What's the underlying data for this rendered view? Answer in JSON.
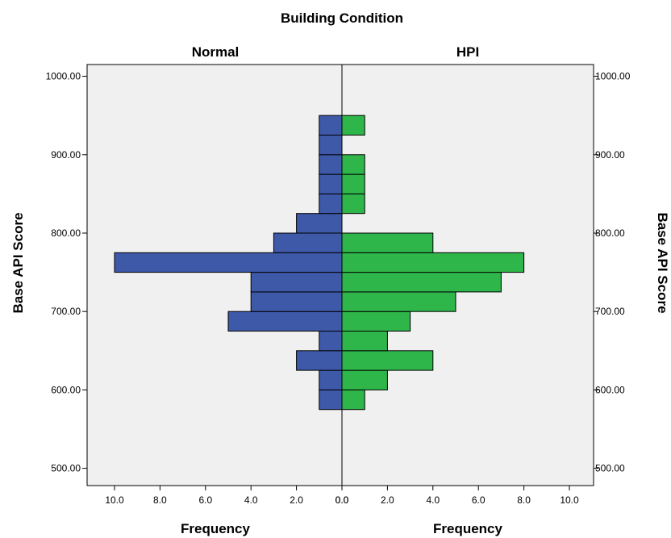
{
  "chart_data": {
    "type": "bar",
    "orientation": "population-pyramid",
    "title": "Building Condition",
    "panels": [
      {
        "name": "Normal",
        "side": "left",
        "color": "#3f59a9",
        "bins": [
          {
            "from": 575,
            "to": 600,
            "count": 1
          },
          {
            "from": 600,
            "to": 625,
            "count": 1
          },
          {
            "from": 625,
            "to": 650,
            "count": 2
          },
          {
            "from": 650,
            "to": 675,
            "count": 1
          },
          {
            "from": 675,
            "to": 700,
            "count": 5
          },
          {
            "from": 700,
            "to": 725,
            "count": 4
          },
          {
            "from": 725,
            "to": 750,
            "count": 4
          },
          {
            "from": 750,
            "to": 775,
            "count": 10
          },
          {
            "from": 775,
            "to": 800,
            "count": 3
          },
          {
            "from": 800,
            "to": 825,
            "count": 2
          },
          {
            "from": 825,
            "to": 850,
            "count": 1
          },
          {
            "from": 850,
            "to": 875,
            "count": 1
          },
          {
            "from": 875,
            "to": 900,
            "count": 1
          },
          {
            "from": 900,
            "to": 925,
            "count": 1
          },
          {
            "from": 925,
            "to": 950,
            "count": 1
          }
        ]
      },
      {
        "name": "HPI",
        "side": "right",
        "color": "#2fb64a",
        "bins": [
          {
            "from": 575,
            "to": 600,
            "count": 1
          },
          {
            "from": 600,
            "to": 625,
            "count": 2
          },
          {
            "from": 625,
            "to": 650,
            "count": 4
          },
          {
            "from": 650,
            "to": 675,
            "count": 2
          },
          {
            "from": 675,
            "to": 700,
            "count": 3
          },
          {
            "from": 700,
            "to": 725,
            "count": 5
          },
          {
            "from": 725,
            "to": 750,
            "count": 7
          },
          {
            "from": 750,
            "to": 775,
            "count": 8
          },
          {
            "from": 775,
            "to": 800,
            "count": 4
          },
          {
            "from": 825,
            "to": 850,
            "count": 1
          },
          {
            "from": 850,
            "to": 875,
            "count": 1
          },
          {
            "from": 875,
            "to": 900,
            "count": 1
          },
          {
            "from": 925,
            "to": 950,
            "count": 1
          }
        ]
      }
    ],
    "ylabel": "Base API Score",
    "xlabel": "Frequency",
    "ylim": [
      478,
      1015
    ],
    "yticks": [
      "500.00",
      "600.00",
      "700.00",
      "800.00",
      "900.00",
      "1000.00"
    ],
    "xticks_left": [
      "10.0",
      "8.0",
      "6.0",
      "4.0",
      "2.0",
      "0.0"
    ],
    "xticks_right": [
      "0.0",
      "2.0",
      "4.0",
      "6.0",
      "8.0",
      "10.0"
    ],
    "xlim": [
      0,
      10
    ],
    "grid": false,
    "plot_background": "#f0f0f0"
  }
}
